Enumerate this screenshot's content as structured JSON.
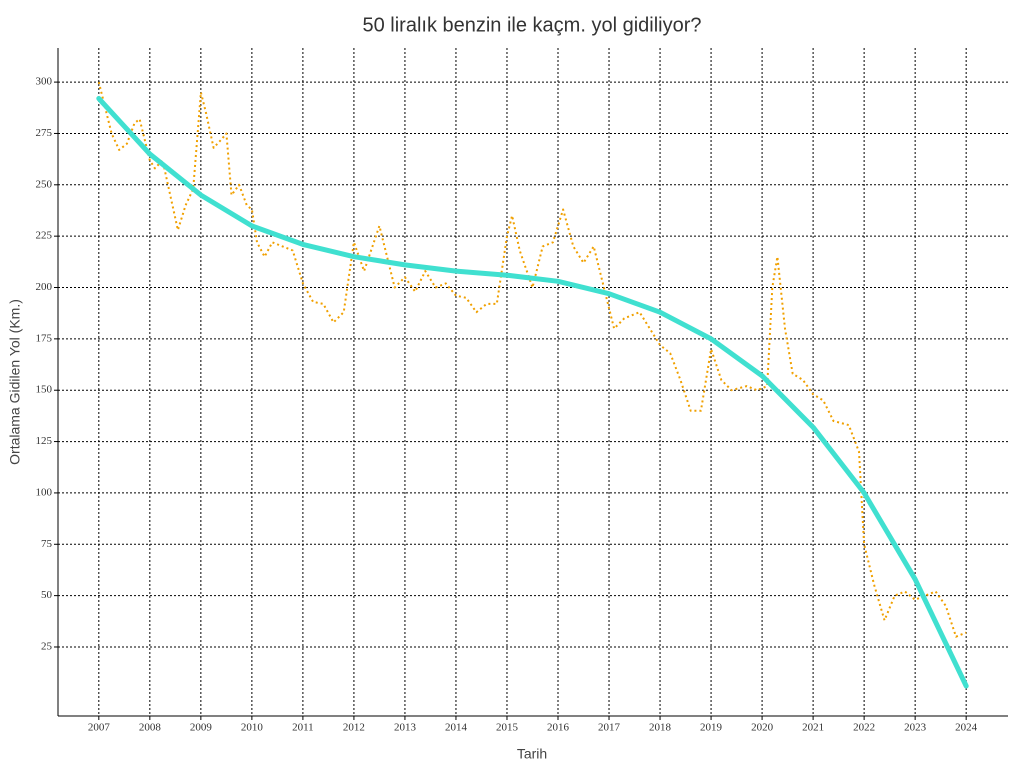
{
  "chart_data": {
    "type": "line",
    "title": "50 liralık benzin ile kaçm. yol gidiliyor?",
    "x_label": "Tarih",
    "y_label": "Ortalama Gidilen Yol (Km.)",
    "xlim": [
      2006.2,
      2024.82
    ],
    "ylim": [
      -8.6,
      316.6
    ],
    "xticks": [
      2007,
      2008,
      2009,
      2010,
      2011,
      2012,
      2013,
      2014,
      2015,
      2016,
      2017,
      2018,
      2019,
      2020,
      2021,
      2022,
      2023,
      2024
    ],
    "yticks": [
      25,
      50,
      75,
      100,
      125,
      150,
      175,
      200,
      225,
      250,
      275,
      300
    ],
    "grid": true,
    "series": [
      {
        "color": "#f0a000",
        "style": "dotted",
        "x": [
          2007.0,
          2007.1,
          2007.25,
          2007.4,
          2007.55,
          2007.7,
          2007.8,
          2008.0,
          2008.1,
          2008.25,
          2008.4,
          2008.55,
          2008.7,
          2008.85,
          2009.0,
          2009.1,
          2009.25,
          2009.4,
          2009.5,
          2009.6,
          2009.75,
          2009.9,
          2010.0,
          2010.1,
          2010.25,
          2010.4,
          2010.6,
          2010.8,
          2011.0,
          2011.2,
          2011.4,
          2011.6,
          2011.8,
          2012.0,
          2012.2,
          2012.5,
          2012.8,
          2013.0,
          2013.2,
          2013.4,
          2013.6,
          2013.8,
          2014.0,
          2014.2,
          2014.4,
          2014.6,
          2014.8,
          2015.0,
          2015.1,
          2015.25,
          2015.5,
          2015.7,
          2015.9,
          2016.1,
          2016.3,
          2016.5,
          2016.7,
          2016.9,
          2017.1,
          2017.3,
          2017.6,
          2017.8,
          2018.0,
          2018.2,
          2018.4,
          2018.6,
          2018.8,
          2019.0,
          2019.2,
          2019.4,
          2019.7,
          2019.9,
          2020.1,
          2020.2,
          2020.3,
          2020.45,
          2020.6,
          2020.8,
          2021.0,
          2021.2,
          2021.4,
          2021.7,
          2021.9,
          2022.0,
          2022.2,
          2022.4,
          2022.6,
          2022.8,
          2023.0,
          2023.2,
          2023.4,
          2023.6,
          2023.8,
          2024.0
        ],
        "values": [
          300,
          290,
          275,
          267,
          270,
          280,
          282,
          262,
          258,
          262,
          245,
          228,
          240,
          248,
          295,
          285,
          268,
          272,
          275,
          245,
          250,
          240,
          238,
          222,
          215,
          222,
          220,
          218,
          202,
          193,
          192,
          183,
          188,
          222,
          208,
          230,
          200,
          205,
          198,
          208,
          200,
          202,
          196,
          195,
          188,
          192,
          192,
          225,
          235,
          218,
          200,
          220,
          222,
          238,
          220,
          212,
          220,
          200,
          180,
          185,
          188,
          180,
          172,
          168,
          155,
          140,
          140,
          170,
          155,
          150,
          152,
          150,
          152,
          200,
          215,
          180,
          158,
          155,
          148,
          145,
          135,
          133,
          120,
          75,
          55,
          38,
          50,
          52,
          48,
          50,
          52,
          45,
          30,
          32
        ]
      },
      {
        "color": "#40e0d0",
        "style": "solid",
        "x": [
          2007,
          2008,
          2009,
          2010,
          2011,
          2012,
          2013,
          2014,
          2015,
          2016,
          2017,
          2018,
          2019,
          2020,
          2021,
          2022,
          2023,
          2024
        ],
        "values": [
          292,
          265,
          245,
          230,
          221,
          215,
          211,
          208,
          206,
          203,
          197,
          188,
          175,
          157,
          132,
          100,
          58,
          6
        ]
      }
    ]
  }
}
